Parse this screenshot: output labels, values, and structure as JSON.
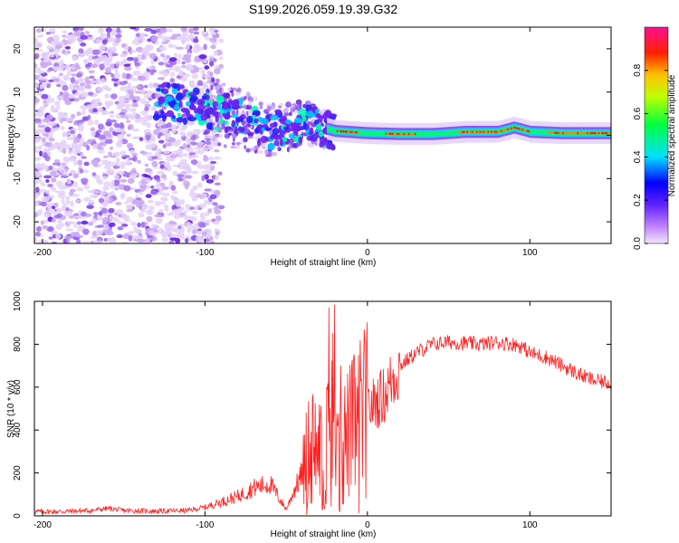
{
  "title": "S199.2026.059.19.39.G32",
  "chart_data": [
    {
      "type": "heatmap",
      "title": "S199.2026.059.19.39.G32",
      "xlabel": "Height of straight line (km)",
      "ylabel": "Frequency (Hz)",
      "xlim": [
        -205,
        150
      ],
      "ylim": [
        -25,
        25
      ],
      "xticks": [
        -200,
        -100,
        0,
        100
      ],
      "yticks": [
        -20,
        -10,
        0,
        10,
        20
      ],
      "colorbar": {
        "label": "Normalized spectral amplitude",
        "range": [
          0.0,
          1.0
        ],
        "ticks": [
          0.0,
          0.2,
          0.4,
          0.6,
          0.8
        ],
        "colormap": [
          "#e8d8f8",
          "#8040ff",
          "#0000ff",
          "#00ffff",
          "#00ff00",
          "#ffff00",
          "#ff8000",
          "#ff0000",
          "#ff0080"
        ]
      },
      "ridge": {
        "description_points_height_km": [
          -120,
          -100,
          -80,
          -60,
          -40,
          -20,
          0,
          20,
          40,
          60,
          80,
          90,
          100,
          120,
          150
        ],
        "frequency_hz": [
          8,
          6,
          4,
          1,
          3,
          1,
          0.5,
          0.3,
          0.3,
          0.8,
          0.8,
          1.8,
          0.8,
          0.5,
          0.5
        ]
      }
    },
    {
      "type": "line",
      "xlabel": "Height of straight line (km)",
      "ylabel": "SNR (10 * v/v)",
      "xlim": [
        -205,
        150
      ],
      "ylim": [
        0,
        1000
      ],
      "xticks": [
        -200,
        -100,
        0,
        100
      ],
      "yticks": [
        0,
        200,
        400,
        600,
        800,
        1000
      ],
      "series": [
        {
          "name": "SNR",
          "color": "#ff2020",
          "x": [
            -205,
            -190,
            -170,
            -160,
            -150,
            -130,
            -110,
            -100,
            -90,
            -80,
            -70,
            -60,
            -55,
            -50,
            -45,
            -40,
            -35,
            -30,
            -25,
            -20,
            -15,
            -10,
            -5,
            0,
            10,
            20,
            30,
            40,
            50,
            60,
            70,
            80,
            90,
            95,
            100,
            110,
            120,
            130,
            140,
            150
          ],
          "y": [
            20,
            20,
            25,
            35,
            25,
            22,
            25,
            40,
            65,
            90,
            130,
            150,
            90,
            30,
            120,
            200,
            350,
            300,
            450,
            480,
            350,
            400,
            450,
            500,
            560,
            700,
            760,
            800,
            810,
            805,
            800,
            810,
            800,
            790,
            760,
            740,
            700,
            660,
            630,
            620
          ]
        }
      ]
    }
  ]
}
